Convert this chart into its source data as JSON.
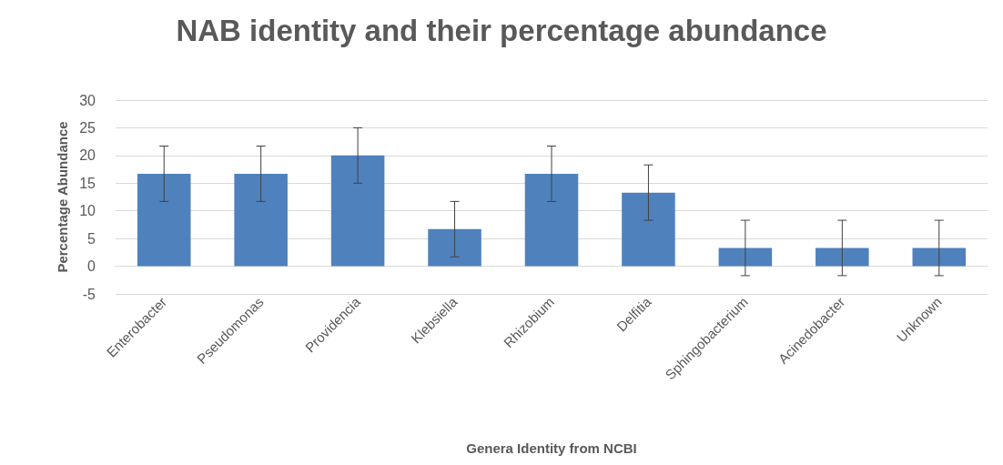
{
  "chart_data": {
    "type": "bar",
    "title": "NAB identity and their percentage abundance",
    "xlabel": "Genera Identity from NCBI",
    "ylabel": "Percentage Abundance",
    "categories": [
      "Enterobacter",
      "Pseudomonas",
      "Providencia",
      "Klebsiella",
      "Rhizobium",
      "Delfitia",
      "Sphingobacterium",
      "Acinedobacter",
      "Unknown"
    ],
    "values": [
      16.7,
      16.7,
      20,
      6.7,
      16.7,
      13.3,
      3.3,
      3.3,
      3.3
    ],
    "errors": [
      5,
      5,
      5,
      5,
      5,
      5,
      5,
      5,
      5
    ],
    "color": "#4f81bd",
    "ylim": [
      -5,
      30
    ],
    "yticks": [
      -5,
      0,
      5,
      10,
      15,
      20,
      25,
      30
    ],
    "grid": "y"
  }
}
